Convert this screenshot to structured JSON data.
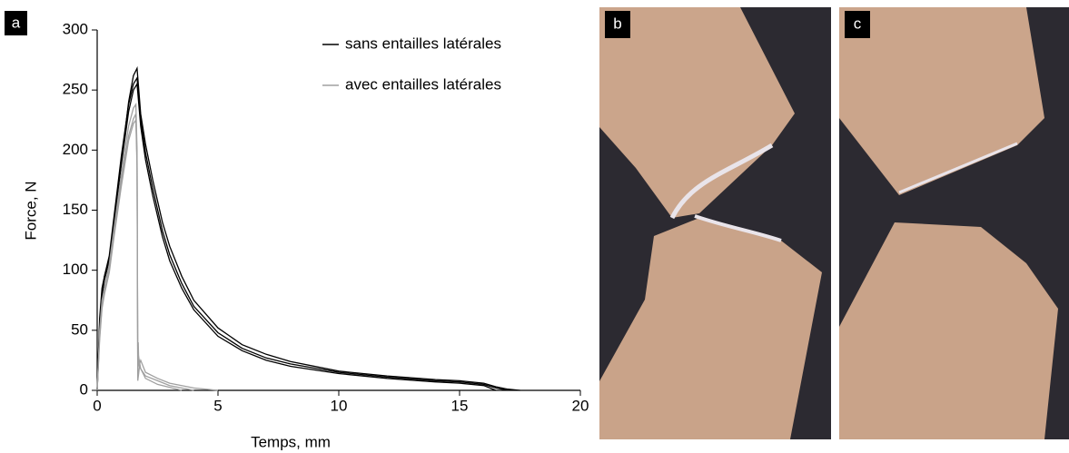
{
  "chart_data": {
    "type": "line",
    "xlabel": "Temps, mm",
    "ylabel": "Force, N",
    "xlim": [
      0,
      20
    ],
    "xticks": [
      0,
      5,
      10,
      15,
      20
    ],
    "ylim": [
      0,
      300
    ],
    "yticks": [
      0,
      50,
      100,
      150,
      200,
      250,
      300
    ],
    "legend": "top-right",
    "series": [
      {
        "name": "sans entailles latérales",
        "color": "#000000",
        "x": [
          0,
          0.1,
          0.2,
          0.3,
          0.5,
          0.7,
          1.0,
          1.3,
          1.5,
          1.65,
          1.8,
          2.0,
          2.3,
          2.7,
          3,
          3.5,
          4,
          5,
          6,
          7,
          8,
          10,
          12,
          14,
          15,
          16,
          16.5,
          17,
          17.5
        ],
        "values": [
          0,
          60,
          85,
          95,
          110,
          140,
          190,
          240,
          262,
          268,
          230,
          205,
          175,
          140,
          120,
          95,
          75,
          52,
          38,
          30,
          24,
          16,
          12,
          9,
          8,
          6,
          3,
          1,
          0
        ]
      },
      {
        "color": "#000000",
        "x": [
          0,
          0.1,
          0.2,
          0.3,
          0.5,
          0.7,
          1.0,
          1.3,
          1.5,
          1.65,
          1.8,
          2.0,
          2.3,
          2.7,
          3,
          3.5,
          4,
          5,
          6,
          7,
          8,
          10,
          12,
          14,
          15,
          16,
          16.5,
          17
        ],
        "values": [
          0,
          55,
          80,
          95,
          112,
          145,
          195,
          238,
          255,
          260,
          225,
          198,
          168,
          133,
          113,
          89,
          70,
          48,
          35,
          27,
          22,
          15,
          11,
          8,
          7,
          5,
          2,
          0
        ]
      },
      {
        "color": "#000000",
        "x": [
          0,
          0.1,
          0.2,
          0.3,
          0.5,
          0.7,
          1.0,
          1.3,
          1.5,
          1.65,
          1.8,
          2.0,
          2.3,
          2.7,
          3,
          3.5,
          4,
          5,
          6,
          7,
          8,
          10,
          12,
          14,
          15,
          16,
          16.5
        ],
        "values": [
          0,
          50,
          78,
          92,
          108,
          140,
          188,
          232,
          250,
          255,
          220,
          192,
          162,
          128,
          108,
          85,
          67,
          45,
          33,
          25,
          20,
          14,
          10,
          7,
          6,
          4,
          0
        ]
      },
      {
        "name": "avec entailles latérales",
        "color": "#a0a0a0",
        "x": [
          0,
          0.1,
          0.2,
          0.3,
          0.5,
          0.7,
          1.0,
          1.3,
          1.5,
          1.6,
          1.65,
          1.68,
          1.7,
          1.72,
          1.8,
          2.0,
          2.5,
          3,
          4,
          5
        ],
        "values": [
          0,
          50,
          75,
          85,
          105,
          135,
          180,
          220,
          235,
          238,
          200,
          15,
          40,
          20,
          25,
          15,
          10,
          6,
          2,
          0
        ]
      },
      {
        "color": "#a0a0a0",
        "x": [
          0,
          0.1,
          0.2,
          0.3,
          0.5,
          0.7,
          1.0,
          1.3,
          1.5,
          1.6,
          1.65,
          1.68,
          1.7,
          1.8,
          2.0,
          2.5,
          3,
          4
        ],
        "values": [
          0,
          45,
          70,
          82,
          100,
          130,
          175,
          212,
          226,
          230,
          190,
          10,
          30,
          18,
          12,
          8,
          4,
          0
        ]
      },
      {
        "color": "#a0a0a0",
        "x": [
          0,
          0.1,
          0.2,
          0.3,
          0.5,
          0.7,
          1.0,
          1.3,
          1.5,
          1.6,
          1.65,
          1.68,
          1.75,
          2.0,
          2.5,
          3.5
        ],
        "values": [
          0,
          42,
          68,
          80,
          98,
          128,
          170,
          208,
          222,
          225,
          185,
          8,
          20,
          10,
          5,
          0
        ]
      }
    ]
  },
  "panel_labels": [
    "a",
    "b",
    "c"
  ]
}
